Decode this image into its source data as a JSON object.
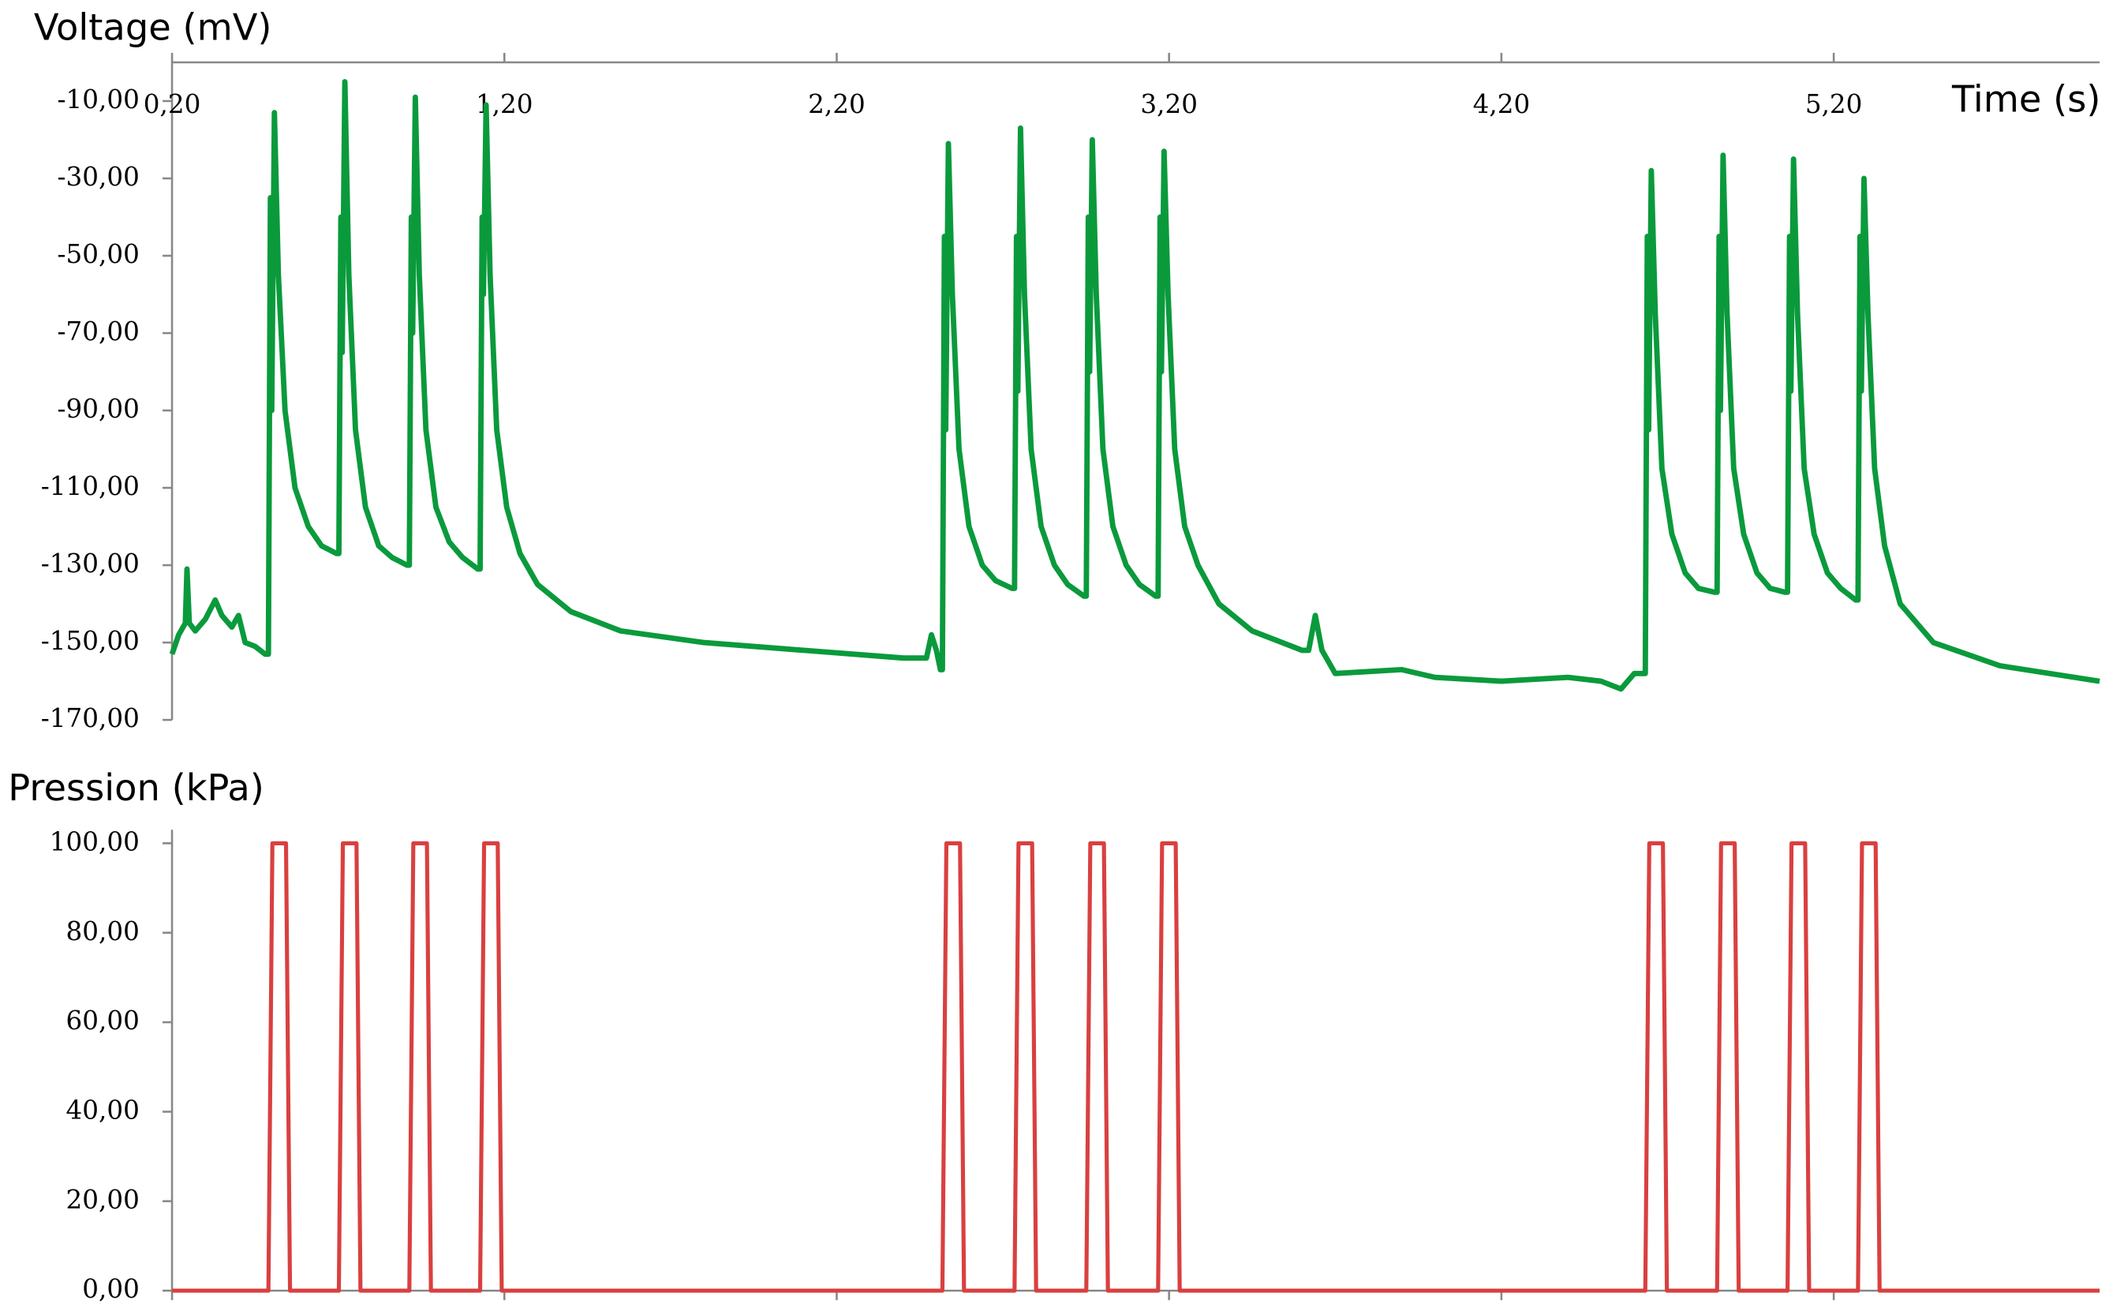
{
  "chart_data": [
    {
      "type": "line",
      "title": "Voltage (mV)",
      "x_label": "Time (s)",
      "color": "#0a9a3c",
      "x": [
        0.2,
        0.22,
        0.24,
        0.245,
        0.252,
        0.27,
        0.3,
        0.33,
        0.35,
        0.38,
        0.4,
        0.42,
        0.45,
        0.48,
        0.49,
        0.496,
        0.5,
        0.508,
        0.52,
        0.54,
        0.57,
        0.61,
        0.65,
        0.695,
        0.702,
        0.708,
        0.712,
        0.72,
        0.732,
        0.752,
        0.782,
        0.822,
        0.862,
        0.907,
        0.914,
        0.92,
        0.924,
        0.932,
        0.944,
        0.964,
        0.994,
        1.034,
        1.074,
        1.12,
        1.127,
        1.133,
        1.137,
        1.145,
        1.157,
        1.177,
        1.207,
        1.247,
        1.3,
        1.4,
        1.55,
        1.8,
        2.1,
        2.4,
        2.47,
        2.485,
        2.5,
        2.512,
        2.518,
        2.524,
        2.528,
        2.536,
        2.548,
        2.568,
        2.598,
        2.638,
        2.678,
        2.728,
        2.735,
        2.741,
        2.745,
        2.753,
        2.765,
        2.785,
        2.815,
        2.855,
        2.895,
        2.944,
        2.951,
        2.957,
        2.961,
        2.969,
        2.981,
        3.001,
        3.031,
        3.071,
        3.111,
        3.16,
        3.167,
        3.173,
        3.177,
        3.185,
        3.197,
        3.217,
        3.247,
        3.287,
        3.35,
        3.45,
        3.6,
        3.62,
        3.64,
        3.66,
        3.7,
        3.9,
        4.0,
        4.2,
        4.4,
        4.5,
        4.56,
        4.6,
        4.627,
        4.633,
        4.639,
        4.643,
        4.651,
        4.663,
        4.683,
        4.713,
        4.753,
        4.793,
        4.842,
        4.849,
        4.855,
        4.859,
        4.867,
        4.879,
        4.899,
        4.929,
        4.969,
        5.009,
        5.054,
        5.061,
        5.067,
        5.071,
        5.079,
        5.091,
        5.111,
        5.141,
        5.181,
        5.221,
        5.266,
        5.273,
        5.279,
        5.283,
        5.291,
        5.303,
        5.323,
        5.353,
        5.4,
        5.5,
        5.7,
        6.0
      ],
      "values": [
        -153,
        -148,
        -145,
        -131,
        -145,
        -147,
        -144,
        -139,
        -143,
        -146,
        -143,
        -150,
        -151,
        -153,
        -153,
        -35,
        -90,
        -13,
        -55,
        -90,
        -110,
        -120,
        -125,
        -127,
        -127,
        -40,
        -75,
        -5,
        -55,
        -95,
        -115,
        -125,
        -128,
        -130,
        -130,
        -40,
        -70,
        -9,
        -55,
        -95,
        -115,
        -124,
        -128,
        -131,
        -131,
        -40,
        -60,
        -11,
        -55,
        -95,
        -115,
        -127,
        -135,
        -142,
        -147,
        -150,
        -152,
        -154,
        -154,
        -148,
        -152,
        -157,
        -157,
        -45,
        -95,
        -21,
        -60,
        -100,
        -120,
        -130,
        -134,
        -136,
        -136,
        -45,
        -85,
        -17,
        -60,
        -100,
        -120,
        -130,
        -135,
        -138,
        -138,
        -40,
        -80,
        -20,
        -60,
        -100,
        -120,
        -130,
        -135,
        -138,
        -138,
        -40,
        -80,
        -23,
        -60,
        -100,
        -120,
        -130,
        -140,
        -147,
        -152,
        -152,
        -143,
        -152,
        -158,
        -157,
        -159,
        -160,
        -159,
        -160,
        -162,
        -158,
        -158,
        -158,
        -45,
        -95,
        -28,
        -65,
        -105,
        -122,
        -132,
        -136,
        -137,
        -137,
        -45,
        -90,
        -24,
        -65,
        -105,
        -122,
        -132,
        -136,
        -137,
        -137,
        -45,
        -85,
        -25,
        -65,
        -105,
        -122,
        -132,
        -136,
        -139,
        -139,
        -45,
        -85,
        -30,
        -65,
        -105,
        -125,
        -140,
        -150,
        -156,
        -160
      ],
      "xlim": [
        0.2,
        6.0
      ],
      "xticks": [
        {
          "value": 0.2,
          "label": "0,20"
        },
        {
          "value": 1.2,
          "label": "1,20"
        },
        {
          "value": 2.2,
          "label": "2,20"
        },
        {
          "value": 3.2,
          "label": "3,20"
        },
        {
          "value": 4.2,
          "label": "4,20"
        },
        {
          "value": 5.2,
          "label": "5,20"
        }
      ],
      "ylim": [
        -170,
        0
      ],
      "yticks": [
        {
          "value": -10,
          "label": "-10,00"
        },
        {
          "value": -30,
          "label": "-30,00"
        },
        {
          "value": -50,
          "label": "-50,00"
        },
        {
          "value": -70,
          "label": "-70,00"
        },
        {
          "value": -90,
          "label": "-90,00"
        },
        {
          "value": -110,
          "label": "-110,00"
        },
        {
          "value": -130,
          "label": "-130,00"
        },
        {
          "value": -150,
          "label": "-150,00"
        },
        {
          "value": -170,
          "label": "-170,00"
        }
      ]
    },
    {
      "type": "line",
      "title": "Pression (kPa)",
      "color": "#d94040",
      "x": [
        0.2,
        0.49,
        0.502,
        0.543,
        0.555,
        0.702,
        0.714,
        0.755,
        0.767,
        0.914,
        0.926,
        0.967,
        0.979,
        1.127,
        1.139,
        1.18,
        1.192,
        2.518,
        2.53,
        2.571,
        2.583,
        2.735,
        2.747,
        2.788,
        2.8,
        2.951,
        2.963,
        3.004,
        3.016,
        3.167,
        3.179,
        3.22,
        3.232,
        4.633,
        4.645,
        4.686,
        4.698,
        4.849,
        4.861,
        4.902,
        4.914,
        5.061,
        5.073,
        5.114,
        5.126,
        5.273,
        5.285,
        5.326,
        5.338,
        6.0
      ],
      "values": [
        0,
        0,
        100,
        100,
        0,
        0,
        100,
        100,
        0,
        0,
        100,
        100,
        0,
        0,
        100,
        100,
        0,
        0,
        100,
        100,
        0,
        0,
        100,
        100,
        0,
        0,
        100,
        100,
        0,
        0,
        100,
        100,
        0,
        0,
        100,
        100,
        0,
        0,
        100,
        100,
        0,
        0,
        100,
        100,
        0,
        0,
        100,
        100,
        0,
        0
      ],
      "xlim": [
        0.2,
        6.0
      ],
      "xticks": [
        0.2,
        1.2,
        2.2,
        3.2,
        4.2,
        5.2
      ],
      "ylim": [
        0,
        100
      ],
      "yticks": [
        {
          "value": 0,
          "label": "0,00"
        },
        {
          "value": 20,
          "label": "20,00"
        },
        {
          "value": 40,
          "label": "40,00"
        },
        {
          "value": 60,
          "label": "60,00"
        },
        {
          "value": 80,
          "label": "80,00"
        },
        {
          "value": 100,
          "label": "100,00"
        }
      ]
    }
  ]
}
